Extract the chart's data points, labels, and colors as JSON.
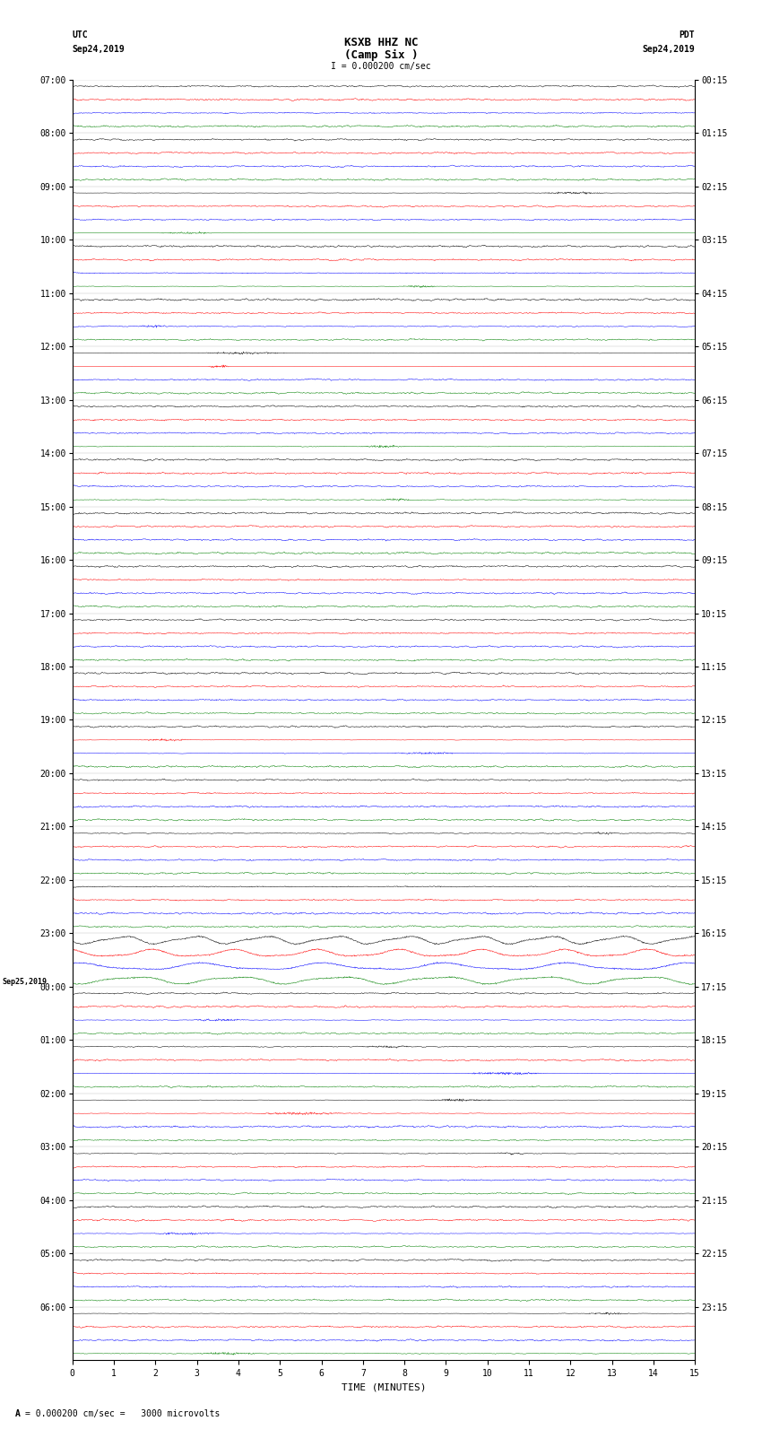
{
  "title_line1": "KSXB HHZ NC",
  "title_line2": "(Camp Six )",
  "scale_bar_text": "I = 0.000200 cm/sec",
  "utc_label": "UTC",
  "utc_date": "Sep24,2019",
  "pdt_label": "PDT",
  "pdt_date": "Sep24,2019",
  "xlabel": "TIME (MINUTES)",
  "bottom_label": "A",
  "bottom_text": "= 0.000200 cm/sec =   3000 microvolts",
  "left_hour_labels": [
    "07:00",
    "08:00",
    "09:00",
    "10:00",
    "11:00",
    "12:00",
    "13:00",
    "14:00",
    "15:00",
    "16:00",
    "17:00",
    "18:00",
    "19:00",
    "20:00",
    "21:00",
    "22:00",
    "23:00",
    "00:00",
    "01:00",
    "02:00",
    "03:00",
    "04:00",
    "05:00",
    "06:00"
  ],
  "right_hour_labels": [
    "00:15",
    "01:15",
    "02:15",
    "03:15",
    "04:15",
    "05:15",
    "06:15",
    "07:15",
    "08:15",
    "09:15",
    "10:15",
    "11:15",
    "12:15",
    "13:15",
    "14:15",
    "15:15",
    "16:15",
    "17:15",
    "18:15",
    "19:15",
    "20:15",
    "21:15",
    "22:15",
    "23:15"
  ],
  "sep25_label": "Sep25,2019",
  "n_hours": 24,
  "n_channels": 4,
  "colors": [
    "black",
    "red",
    "blue",
    "green"
  ],
  "x_min": 0,
  "x_max": 15,
  "x_ticks": [
    0,
    1,
    2,
    3,
    4,
    5,
    6,
    7,
    8,
    9,
    10,
    11,
    12,
    13,
    14,
    15
  ],
  "fig_width": 8.5,
  "fig_height": 16.13,
  "dpi": 100,
  "bg_color": "white",
  "trace_amplitude": 0.1,
  "large_amp_hour": 16,
  "large_amp_scale": 3.5,
  "n_pts": 1500,
  "linewidth": 0.35
}
